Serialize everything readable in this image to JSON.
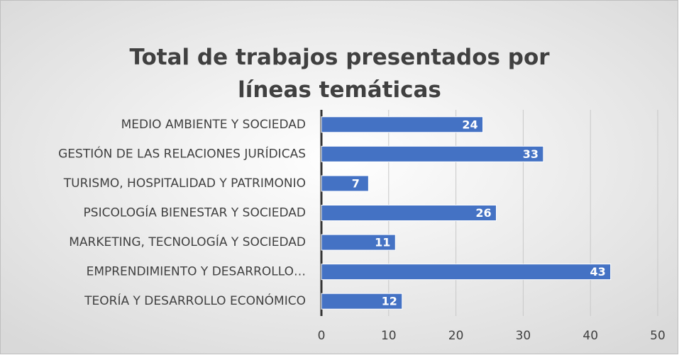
{
  "chart_data": {
    "type": "bar",
    "orientation": "horizontal",
    "title": "Total de trabajos presentados por líneas temáticas",
    "categories": [
      "MEDIO AMBIENTE Y SOCIEDAD",
      "GESTIÓN DE LAS RELACIONES JURÍDICAS",
      "TURISMO, HOSPITALIDAD Y PATRIMONIO",
      "PSICOLOGÍA BIENESTAR Y SOCIEDAD",
      "MARKETING, TECNOLOGÍA Y SOCIEDAD",
      "EMPRENDIMIENTO Y DESARROLLO…",
      "TEORÍA Y DESARROLLO ECONÓMICO"
    ],
    "values": [
      24,
      33,
      7,
      26,
      11,
      43,
      12
    ],
    "color": "#4472c4",
    "xlim": [
      0,
      50
    ],
    "xticks": [
      0,
      10,
      20,
      30,
      40,
      50
    ],
    "grid": true
  }
}
